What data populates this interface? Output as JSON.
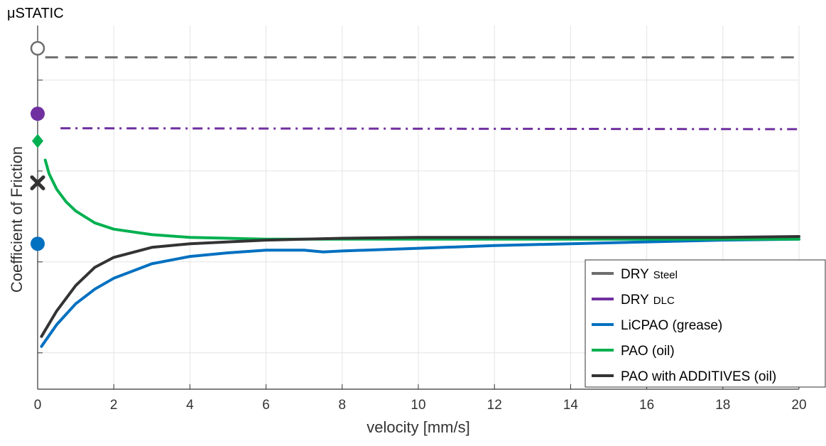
{
  "chart_data": {
    "type": "line",
    "top_label": "μSTATIC",
    "xlabel": "velocity [mm/s]",
    "ylabel": "Coefficient of Friction",
    "xlim": [
      0,
      20
    ],
    "ylim": [
      0,
      4
    ],
    "x_ticks": [
      0,
      2,
      4,
      6,
      8,
      10,
      12,
      14,
      16,
      18,
      20
    ],
    "y_gridlines": [
      0.4,
      1.4,
      2.4,
      3.4
    ],
    "grid": true,
    "legend_position": "bottom-right",
    "series": [
      {
        "name": "DRY",
        "name_suffix": "Steel",
        "color": "#6d6d6d",
        "style": "dashed",
        "static_marker": "open-circle",
        "static_value": 3.75,
        "x": [
          0.2,
          20
        ],
        "y": [
          3.65,
          3.65
        ]
      },
      {
        "name": "DRY",
        "name_suffix": "DLC",
        "color": "#7030a0",
        "style": "dashdot",
        "static_marker": "circle",
        "static_value": 3.03,
        "x": [
          0.6,
          20
        ],
        "y": [
          2.87,
          2.86
        ]
      },
      {
        "name": "LiCPAO (grease)",
        "color": "#0070c0",
        "style": "solid",
        "static_marker": "circle",
        "static_value": 1.6,
        "x": [
          0.1,
          0.5,
          1,
          1.5,
          2,
          3,
          4,
          5,
          6,
          7,
          7.5,
          8,
          10,
          12,
          14,
          16,
          18,
          20
        ],
        "y": [
          0.47,
          0.71,
          0.94,
          1.1,
          1.22,
          1.38,
          1.46,
          1.5,
          1.53,
          1.53,
          1.51,
          1.52,
          1.55,
          1.58,
          1.6,
          1.62,
          1.64,
          1.65
        ]
      },
      {
        "name": "PAO (oil)",
        "color": "#00b050",
        "style": "solid",
        "static_marker": "diamond",
        "static_value": 2.73,
        "x": [
          0.2,
          0.3,
          0.5,
          0.75,
          1,
          1.5,
          2,
          3,
          4,
          5,
          6,
          7,
          8,
          10,
          12,
          14,
          16,
          18,
          20
        ],
        "y": [
          2.52,
          2.37,
          2.2,
          2.06,
          1.96,
          1.83,
          1.76,
          1.7,
          1.67,
          1.66,
          1.65,
          1.65,
          1.65,
          1.65,
          1.65,
          1.65,
          1.65,
          1.65,
          1.65
        ]
      },
      {
        "name": "PAO with ADDITIVES (oil)",
        "color": "#333333",
        "style": "solid",
        "static_marker": "cross",
        "static_value": 2.27,
        "x": [
          0.1,
          0.5,
          1,
          1.5,
          2,
          3,
          4,
          5,
          6,
          7,
          8,
          10,
          12,
          14,
          16,
          18,
          20
        ],
        "y": [
          0.58,
          0.86,
          1.14,
          1.34,
          1.45,
          1.56,
          1.6,
          1.62,
          1.64,
          1.65,
          1.66,
          1.67,
          1.67,
          1.67,
          1.67,
          1.67,
          1.68
        ]
      }
    ]
  }
}
